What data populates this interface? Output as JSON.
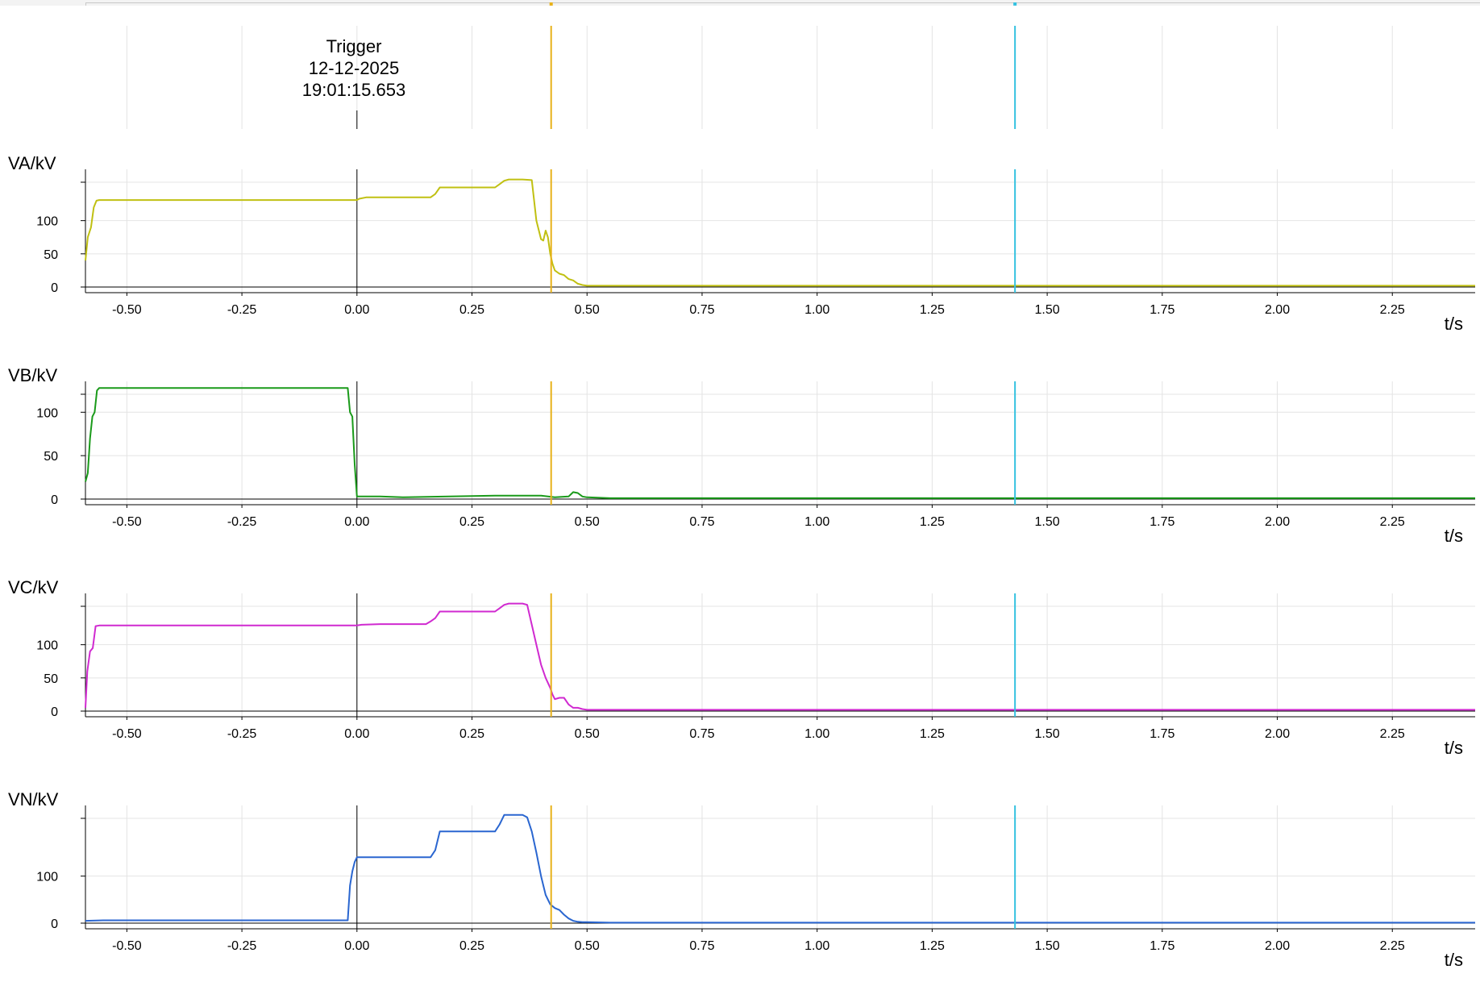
{
  "trigger": {
    "title": "Trigger",
    "date": "12-12-2025",
    "time": "19:01:15.653",
    "t": 0.0
  },
  "cursors": [
    {
      "name": "cursor-1",
      "t": 0.422,
      "color": "#e8b21a"
    },
    {
      "name": "cursor-2",
      "t": 1.43,
      "color": "#35c2e0"
    }
  ],
  "colors": {
    "grid": "#e4e4e4",
    "axis": "#000000"
  },
  "chart_data": [
    {
      "type": "line",
      "ylabel": "VA/kV",
      "xlabel": "t/s",
      "xlim": [
        -0.59,
        2.43
      ],
      "ylim": [
        0,
        170
      ],
      "yticks": [
        0,
        50,
        100
      ],
      "xticks": [
        -0.5,
        -0.25,
        0.0,
        0.25,
        0.5,
        0.75,
        1.0,
        1.25,
        1.5,
        1.75,
        2.0,
        2.25
      ],
      "xtick_labels": [
        "-0.50",
        "-0.25",
        "0.00",
        "0.25",
        "0.50",
        "0.75",
        "1.00",
        "1.25",
        "1.50",
        "1.75",
        "2.00",
        "2.25"
      ],
      "color": "#c0c012",
      "x": [
        -0.59,
        -0.585,
        -0.578,
        -0.572,
        -0.566,
        -0.56,
        -0.5,
        -0.25,
        -0.1,
        0.0,
        0.005,
        0.02,
        0.05,
        0.1,
        0.16,
        0.17,
        0.18,
        0.2,
        0.25,
        0.3,
        0.31,
        0.32,
        0.33,
        0.36,
        0.38,
        0.385,
        0.39,
        0.4,
        0.405,
        0.41,
        0.415,
        0.42,
        0.425,
        0.43,
        0.44,
        0.45,
        0.46,
        0.47,
        0.48,
        0.49,
        0.5,
        0.55,
        1.0,
        1.5,
        2.0,
        2.43
      ],
      "y": [
        40,
        75,
        90,
        120,
        130,
        131,
        131,
        131,
        131,
        131,
        133,
        135,
        135,
        135,
        135,
        140,
        150,
        150,
        150,
        150,
        155,
        160,
        162,
        162,
        161,
        130,
        100,
        72,
        70,
        85,
        75,
        50,
        35,
        25,
        20,
        18,
        12,
        10,
        5,
        3,
        2,
        2,
        2,
        2,
        2,
        2
      ]
    },
    {
      "type": "line",
      "ylabel": "VB/kV",
      "xlabel": "t/s",
      "xlim": [
        -0.59,
        2.43
      ],
      "ylim": [
        0,
        130
      ],
      "yticks": [
        0,
        50,
        100
      ],
      "xticks": [
        -0.5,
        -0.25,
        0.0,
        0.25,
        0.5,
        0.75,
        1.0,
        1.25,
        1.5,
        1.75,
        2.0,
        2.25
      ],
      "xtick_labels": [
        "-0.50",
        "-0.25",
        "0.00",
        "0.25",
        "0.50",
        "0.75",
        "1.00",
        "1.25",
        "1.50",
        "1.75",
        "2.00",
        "2.25"
      ],
      "color": "#1a9a1a",
      "x": [
        -0.59,
        -0.585,
        -0.58,
        -0.575,
        -0.57,
        -0.565,
        -0.56,
        -0.5,
        -0.25,
        -0.02,
        -0.015,
        -0.01,
        -0.005,
        0.0,
        0.005,
        0.05,
        0.1,
        0.2,
        0.3,
        0.4,
        0.43,
        0.46,
        0.47,
        0.48,
        0.49,
        0.5,
        0.55,
        1.0,
        1.5,
        2.0,
        2.43
      ],
      "y": [
        20,
        30,
        70,
        95,
        100,
        125,
        128,
        128,
        128,
        128,
        100,
        95,
        40,
        3,
        3,
        3,
        2,
        3,
        4,
        4,
        2,
        3,
        8,
        7,
        3,
        2,
        1,
        1,
        1,
        1,
        1
      ]
    },
    {
      "type": "line",
      "ylabel": "VC/kV",
      "xlabel": "t/s",
      "xlim": [
        -0.59,
        2.43
      ],
      "ylim": [
        0,
        170
      ],
      "yticks": [
        0,
        50,
        100
      ],
      "xticks": [
        -0.5,
        -0.25,
        0.0,
        0.25,
        0.5,
        0.75,
        1.0,
        1.25,
        1.5,
        1.75,
        2.0,
        2.25
      ],
      "xtick_labels": [
        "-0.50",
        "-0.25",
        "0.00",
        "0.25",
        "0.50",
        "0.75",
        "1.00",
        "1.25",
        "1.50",
        "1.75",
        "2.00",
        "2.25"
      ],
      "color": "#d02ad0",
      "x": [
        -0.59,
        -0.586,
        -0.58,
        -0.574,
        -0.568,
        -0.56,
        -0.5,
        -0.25,
        -0.1,
        0.0,
        0.01,
        0.05,
        0.1,
        0.15,
        0.16,
        0.17,
        0.18,
        0.2,
        0.25,
        0.3,
        0.31,
        0.32,
        0.33,
        0.36,
        0.37,
        0.38,
        0.39,
        0.4,
        0.41,
        0.42,
        0.425,
        0.43,
        0.44,
        0.45,
        0.46,
        0.47,
        0.48,
        0.49,
        0.5,
        0.55,
        1.0,
        1.5,
        2.0,
        2.43
      ],
      "y": [
        5,
        60,
        90,
        95,
        128,
        129,
        129,
        129,
        129,
        129,
        130,
        131,
        131,
        131,
        135,
        140,
        150,
        150,
        150,
        150,
        155,
        160,
        162,
        162,
        160,
        130,
        100,
        70,
        50,
        35,
        25,
        18,
        20,
        20,
        10,
        5,
        5,
        3,
        2,
        2,
        2,
        2,
        2,
        2
      ]
    },
    {
      "type": "line",
      "ylabel": "VN/kV",
      "xlabel": "t/s",
      "xlim": [
        -0.59,
        2.43
      ],
      "ylim": [
        0,
        240
      ],
      "yticks": [
        0,
        100
      ],
      "xticks": [
        -0.5,
        -0.25,
        0.0,
        0.25,
        0.5,
        0.75,
        1.0,
        1.25,
        1.5,
        1.75,
        2.0,
        2.25
      ],
      "xtick_labels": [
        "-0.50",
        "-0.25",
        "0.00",
        "0.25",
        "0.50",
        "0.75",
        "1.00",
        "1.25",
        "1.50",
        "1.75",
        "2.00",
        "2.25"
      ],
      "color": "#2a66d0",
      "x": [
        -0.59,
        -0.55,
        -0.5,
        -0.25,
        -0.02,
        -0.015,
        -0.01,
        -0.005,
        0.0,
        0.05,
        0.1,
        0.16,
        0.17,
        0.18,
        0.2,
        0.25,
        0.3,
        0.31,
        0.32,
        0.36,
        0.37,
        0.38,
        0.39,
        0.4,
        0.41,
        0.42,
        0.43,
        0.44,
        0.45,
        0.46,
        0.47,
        0.48,
        0.49,
        0.5,
        0.55,
        1.0,
        1.5,
        2.0,
        2.43
      ],
      "y": [
        5,
        6,
        6,
        6,
        6,
        80,
        110,
        130,
        140,
        140,
        140,
        140,
        155,
        195,
        195,
        195,
        195,
        210,
        230,
        230,
        225,
        195,
        150,
        100,
        60,
        40,
        32,
        28,
        18,
        10,
        5,
        3,
        2,
        2,
        1,
        1,
        1,
        1,
        1
      ]
    }
  ]
}
